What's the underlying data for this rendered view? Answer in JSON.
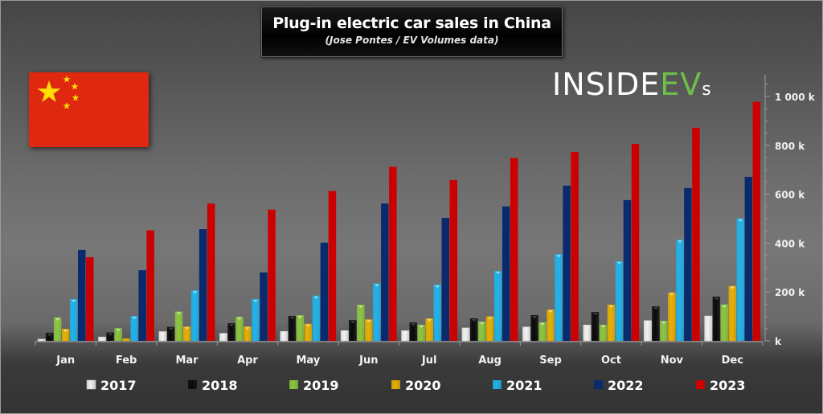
{
  "chart_data": {
    "type": "bar",
    "title": "Plug-in electric car sales in China",
    "subtitle": "(Jose Pontes / EV Volumes data)",
    "xlabel": "",
    "ylabel": "",
    "ylim": [
      0,
      1050
    ],
    "yunit": "k",
    "yticks": [
      0,
      200,
      400,
      600,
      800,
      1000
    ],
    "ytick_labels": [
      "k",
      "200 k",
      "400 k",
      "600 k",
      "800 k",
      "1 000 k"
    ],
    "grid": false,
    "legend_position": "bottom",
    "categories": [
      "Jan",
      "Feb",
      "Mar",
      "Apr",
      "May",
      "Jun",
      "Jul",
      "Aug",
      "Sep",
      "Oct",
      "Nov",
      "Dec"
    ],
    "series": [
      {
        "name": "2017",
        "color": "#f2f2f2",
        "values": [
          7,
          16,
          38,
          31,
          39,
          42,
          42,
          53,
          57,
          65,
          83,
          102
        ]
      },
      {
        "name": "2018",
        "color": "#0a0a0a",
        "values": [
          33,
          34,
          57,
          72,
          102,
          85,
          75,
          92,
          105,
          118,
          141,
          181
        ]
      },
      {
        "name": "2019",
        "color": "#8cc63f",
        "values": [
          96,
          52,
          120,
          99,
          105,
          148,
          66,
          79,
          76,
          66,
          82,
          149
        ]
      },
      {
        "name": "2020",
        "color": "#e8b000",
        "values": [
          49,
          10,
          59,
          59,
          70,
          88,
          92,
          100,
          128,
          148,
          198,
          225
        ]
      },
      {
        "name": "2021",
        "color": "#1eb4ec",
        "values": [
          171,
          102,
          207,
          171,
          185,
          235,
          230,
          286,
          355,
          326,
          414,
          501
        ]
      },
      {
        "name": "2022",
        "color": "#0a2a6e",
        "values": [
          372,
          289,
          457,
          280,
          402,
          562,
          503,
          550,
          635,
          576,
          625,
          671
        ]
      },
      {
        "name": "2023",
        "color": "#cc0000",
        "values": [
          342,
          452,
          562,
          537,
          613,
          712,
          658,
          748,
          773,
          806,
          872,
          978
        ]
      }
    ]
  },
  "logo": {
    "inside": "INSIDE",
    "ev": "EV",
    "s": "s",
    "colors": {
      "inside": "#ffffff",
      "ev": "#6cc04a"
    }
  },
  "flag": {
    "name": "China",
    "field_color": "#de2910",
    "star_color": "#ffde00"
  }
}
